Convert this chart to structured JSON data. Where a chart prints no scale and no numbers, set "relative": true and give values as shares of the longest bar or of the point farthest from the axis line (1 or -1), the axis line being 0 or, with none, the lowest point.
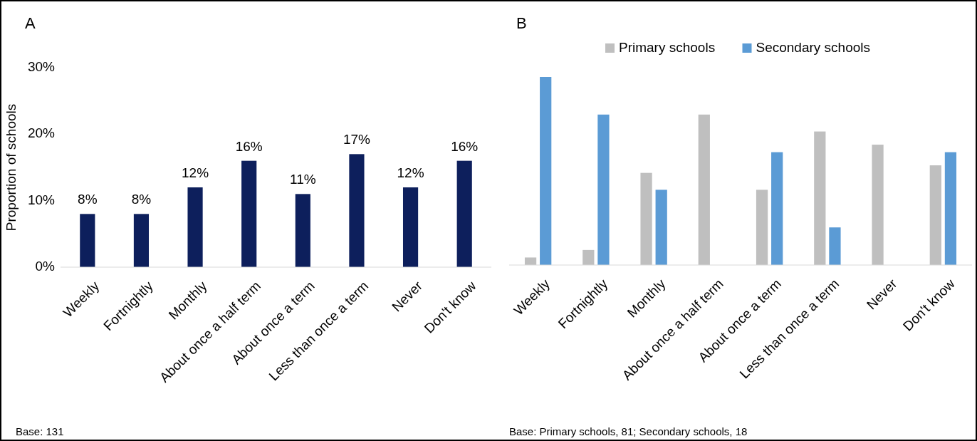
{
  "chart_data": [
    {
      "type": "bar",
      "title": "A",
      "ylabel": "Proportion of schools",
      "categories": [
        "Weekly",
        "Fortnightly",
        "Monthly",
        "About once a half term",
        "About once a term",
        "Less than once a term",
        "Never",
        "Don't know"
      ],
      "series": [
        {
          "color": "#0d1f5c",
          "values": [
            8,
            8,
            12,
            16,
            11,
            17,
            12,
            16
          ]
        }
      ],
      "ylim": [
        0,
        30
      ],
      "yticks": [
        {
          "value": 0,
          "label": "0%"
        },
        {
          "value": 10,
          "label": "10%"
        },
        {
          "value": 20,
          "label": "20%"
        },
        {
          "value": 30,
          "label": "30%"
        }
      ],
      "value_labels": [
        "8%",
        "8%",
        "12%",
        "16%",
        "11%",
        "17%",
        "12%",
        "16%"
      ],
      "annotations": [
        "Base: 131"
      ]
    },
    {
      "type": "bar",
      "title": "B",
      "relative": true,
      "legend": "top",
      "categories": [
        "Weekly",
        "Fortnightly",
        "Monthly",
        "About once a half term",
        "About once a term",
        "Less than once a term",
        "Never",
        "Don't know"
      ],
      "series": [
        {
          "name": "Primary schools",
          "color": "#bfbfbf",
          "values": [
            0.04,
            0.08,
            0.49,
            0.8,
            0.4,
            0.71,
            0.64,
            0.53
          ]
        },
        {
          "name": "Secondary schools",
          "color": "#5b9bd5",
          "values": [
            1,
            0.8,
            0.4,
            0,
            0.6,
            0.2,
            0,
            0.6
          ]
        }
      ],
      "annotations": [
        "Base: Primary schools, 81; Secondary schools, 18"
      ]
    }
  ]
}
